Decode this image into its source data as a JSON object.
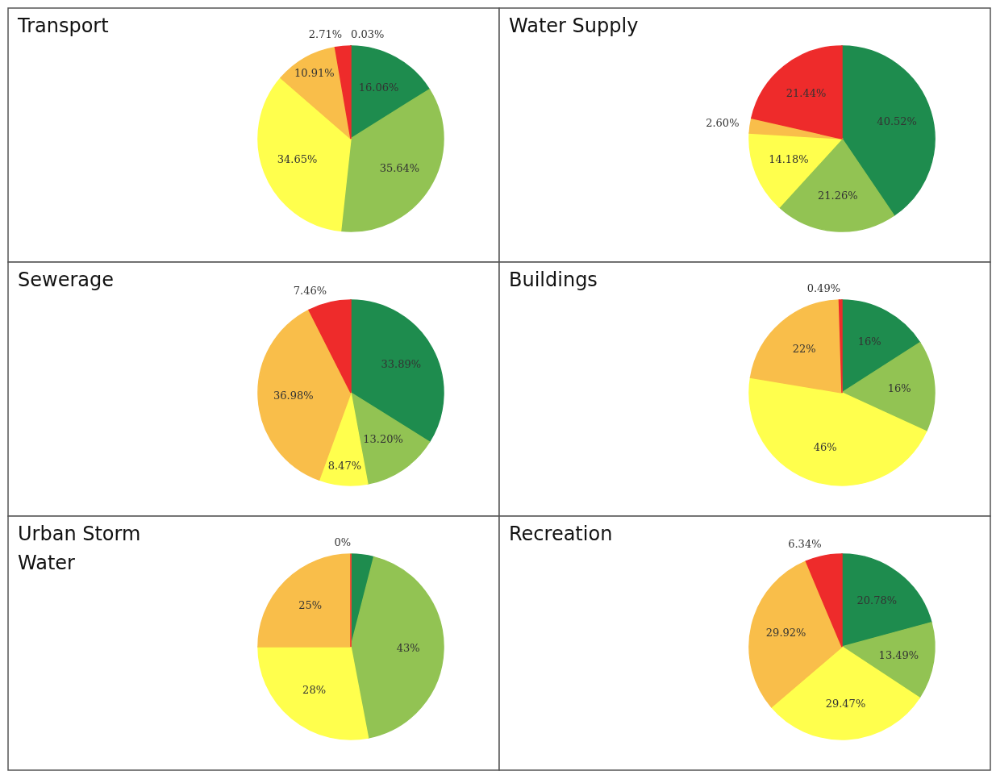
{
  "chart_data": [
    {
      "type": "pie",
      "title": "Transport",
      "categories": [
        null,
        null,
        null,
        null,
        null,
        null
      ],
      "values": [
        0.03,
        16.06,
        35.64,
        34.65,
        10.91,
        2.71
      ],
      "value_labels": [
        "0.03%",
        "16.06%",
        "35.64%",
        "34.65%",
        "10.91%",
        "2.71%"
      ],
      "colors": [
        "#a01818",
        "#1e8c4e",
        "#92c353",
        "#ffff4d",
        "#f9be4a",
        "#ee2b2b"
      ]
    },
    {
      "type": "pie",
      "title": "Water Supply",
      "categories": [
        null,
        null,
        null,
        null,
        null
      ],
      "values": [
        40.52,
        21.26,
        14.18,
        2.6,
        21.44
      ],
      "value_labels": [
        "40.52%",
        "21.26%",
        "14.18%",
        "2.60%",
        "21.44%"
      ],
      "colors": [
        "#1e8c4e",
        "#92c353",
        "#ffff4d",
        "#f9be4a",
        "#ee2b2b"
      ]
    },
    {
      "type": "pie",
      "title": "Sewerage",
      "categories": [
        null,
        null,
        null,
        null,
        null
      ],
      "values": [
        33.89,
        13.2,
        8.47,
        36.98,
        7.46
      ],
      "value_labels": [
        "33.89%",
        "13.20%",
        "8.47%",
        "36.98%",
        "7.46%"
      ],
      "colors": [
        "#1e8c4e",
        "#92c353",
        "#ffff4d",
        "#f9be4a",
        "#ee2b2b"
      ]
    },
    {
      "type": "pie",
      "title": "Buildings",
      "categories": [
        null,
        null,
        null,
        null,
        null
      ],
      "values": [
        16,
        16,
        46,
        22,
        0.49
      ],
      "value_labels": [
        "16%",
        "16%",
        "46%",
        "22%",
        "0.49%"
      ],
      "colors": [
        "#1e8c4e",
        "#92c353",
        "#ffff4d",
        "#f9be4a",
        "#ee2b2b"
      ]
    },
    {
      "type": "pie",
      "title": "Urban Storm Water",
      "categories": [
        null,
        null,
        null,
        null,
        null
      ],
      "values": [
        4,
        43,
        28,
        25,
        0
      ],
      "value_labels": [
        null,
        "43%",
        "28%",
        "25%",
        "0%"
      ],
      "colors": [
        "#1e8c4e",
        "#92c353",
        "#ffff4d",
        "#f9be4a",
        "#ee2b2b"
      ]
    },
    {
      "type": "pie",
      "title": "Recreation",
      "categories": [
        null,
        null,
        null,
        null,
        null
      ],
      "values": [
        20.78,
        13.49,
        29.47,
        29.92,
        6.34
      ],
      "value_labels": [
        "20.78%",
        "13.49%",
        "29.47%",
        "29.92%",
        "6.34%"
      ],
      "colors": [
        "#1e8c4e",
        "#92c353",
        "#ffff4d",
        "#f9be4a",
        "#ee2b2b"
      ]
    }
  ]
}
